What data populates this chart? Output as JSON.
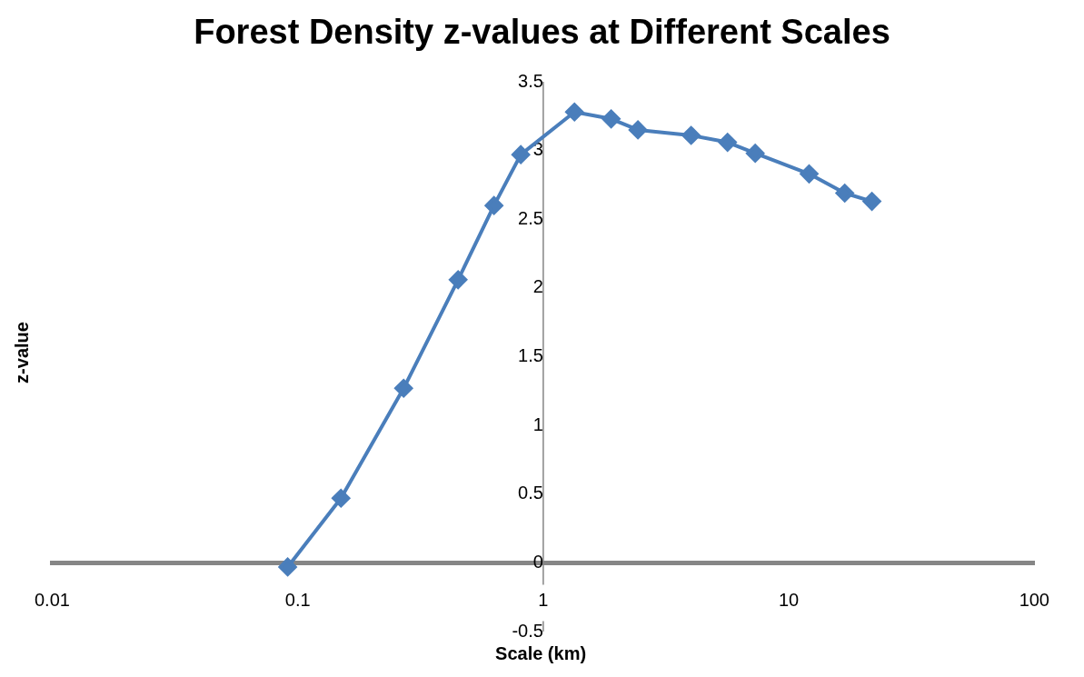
{
  "chart_data": {
    "type": "line",
    "title": "Forest Density z-values at Different Scales",
    "xlabel": "Scale (km)",
    "ylabel": "z-value",
    "x": [
      0.091,
      0.15,
      0.27,
      0.45,
      0.63,
      0.81,
      1.34,
      1.89,
      2.43,
      4.0,
      5.63,
      7.3,
      12.1,
      16.9,
      21.8
    ],
    "series": [
      {
        "color": "#4a7ebb",
        "values": [
          -0.03,
          0.47,
          1.27,
          2.06,
          2.6,
          2.97,
          3.28,
          3.23,
          3.15,
          3.11,
          3.06,
          2.98,
          2.83,
          2.69,
          2.63
        ]
      }
    ],
    "xlim": [
      0.01,
      100
    ],
    "xticks": [
      0.01,
      0.1,
      1,
      10,
      100
    ],
    "ylim": [
      -0.5,
      3.5
    ],
    "yticks": [
      -0.5,
      0,
      0.5,
      1,
      1.5,
      2,
      2.5,
      3,
      3.5
    ],
    "log": "x",
    "grid": false,
    "legend": false,
    "marker": "diamond",
    "line_style": "solid"
  }
}
